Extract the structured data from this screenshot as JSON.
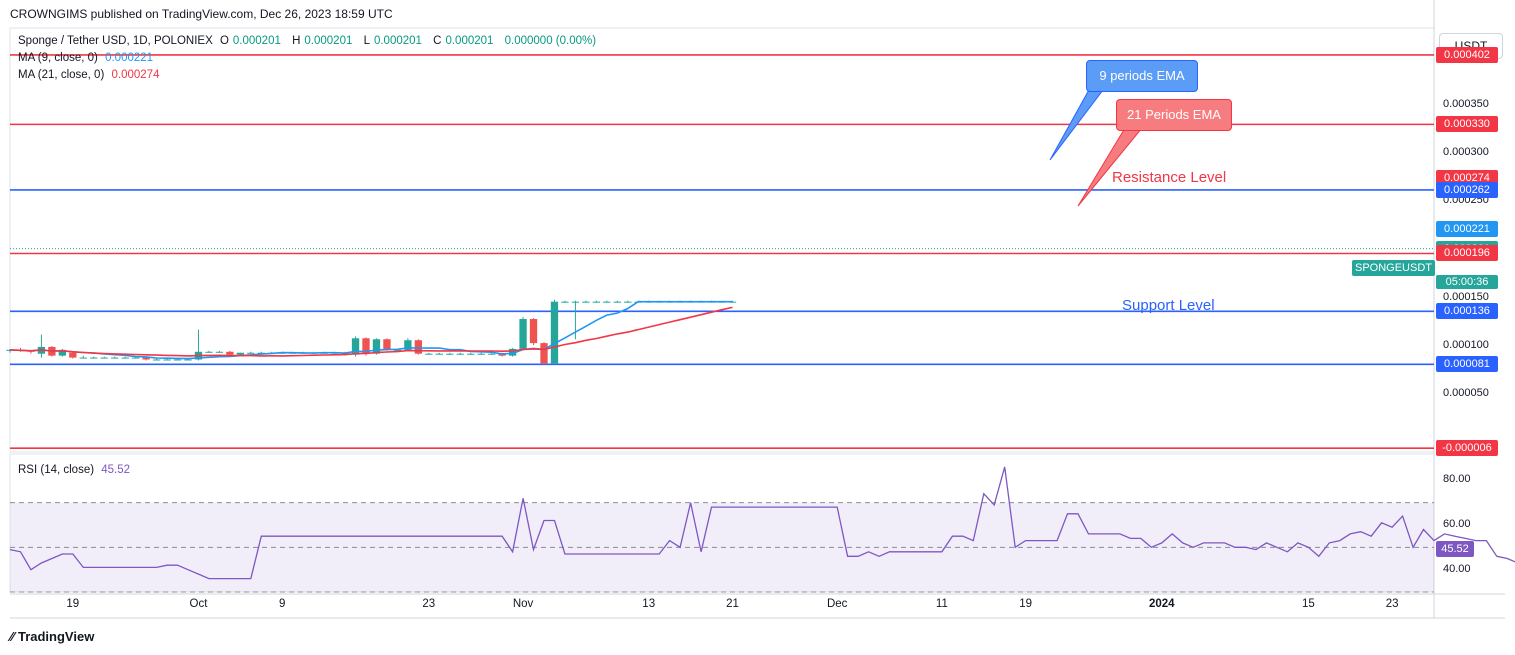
{
  "header": {
    "publisher_line": "CROWNGIMS published on TradingView.com, Dec 26, 2023 18:59 UTC"
  },
  "legend": {
    "symbol": "Sponge / Tether USD, 1D, POLONIEX",
    "o_label": "O",
    "o_value": "0.000201",
    "h_label": "H",
    "h_value": "0.000201",
    "l_label": "L",
    "l_value": "0.000201",
    "c_label": "C",
    "c_value": "0.000201",
    "change": "0.000000 (0.00%)",
    "ma9_label": "MA (9, close, 0)",
    "ma9_value": "0.000221",
    "ma21_label": "MA (21, close, 0)",
    "ma21_value": "0.000274",
    "rsi_label": "RSI (14, close)",
    "rsi_value": "45.52"
  },
  "currency_button": "USDT",
  "annotations": {
    "ema9": "9 periods EMA",
    "ema21": "21 Periods EMA",
    "resistance": "Resistance Level",
    "support": "Support Level"
  },
  "symbol_tag": "SPONGEUSDT",
  "countdown": "05:00:36",
  "price_axis_ticks": [
    "0.000350",
    "0.000300",
    "0.000250",
    "0.000150",
    "0.000100",
    "0.000050"
  ],
  "price_pills": [
    {
      "label": "0.000402",
      "color": "#f23645"
    },
    {
      "label": "0.000330",
      "color": "#f23645"
    },
    {
      "label": "0.000274",
      "color": "#f23645"
    },
    {
      "label": "0.000262",
      "color": "#2962ff"
    },
    {
      "label": "0.000221",
      "color": "#2196f3"
    },
    {
      "label": "0.000201",
      "color": "#26a69a"
    },
    {
      "label": "0.000196",
      "color": "#f23645"
    },
    {
      "label": "0.000136",
      "color": "#2962ff"
    },
    {
      "label": "0.000081",
      "color": "#2962ff"
    },
    {
      "label": "-0.000006",
      "color": "#f23645"
    }
  ],
  "rsi_axis_ticks": [
    "80.00",
    "60.00",
    "40.00"
  ],
  "rsi_pill": "45.52",
  "x_axis_ticks": [
    "19",
    "Oct",
    "9",
    "23",
    "Nov",
    "13",
    "21",
    "Dec",
    "11",
    "19",
    "2024",
    "15",
    "23"
  ],
  "footer_logo": "TradingView",
  "colors": {
    "up": "#26a69a",
    "down": "#ef5350",
    "ma9": "#2196f3",
    "ma21": "#f23645",
    "rsi": "#7e57c2",
    "resistance_line": "#f23645",
    "support_line": "#2962ff"
  },
  "chart_data": [
    {
      "type": "candlestick",
      "title": "Sponge / Tether USD, 1D, POLONIEX",
      "x_range": [
        "2023-09-13",
        "2024-01-27"
      ],
      "ylim": [
        -1e-05,
        0.00043
      ],
      "horizontal_levels": [
        {
          "price": 0.000402,
          "kind": "resistance"
        },
        {
          "price": 0.00033,
          "kind": "resistance"
        },
        {
          "price": 0.000262,
          "kind": "support"
        },
        {
          "price": 0.000196,
          "kind": "resistance"
        },
        {
          "price": 0.000136,
          "kind": "support"
        },
        {
          "price": 8.1e-05,
          "kind": "support"
        },
        {
          "price": -6e-06,
          "kind": "resistance"
        }
      ],
      "candles": [
        {
          "date": "2023-09-13",
          "o": 9.5e-05,
          "h": 9.7e-05,
          "l": 9.3e-05,
          "c": 9.6e-05
        },
        {
          "date": "2023-09-14",
          "o": 9.6e-05,
          "h": 9.8e-05,
          "l": 9.4e-05,
          "c": 9.5e-05
        },
        {
          "date": "2023-09-15",
          "o": 9.5e-05,
          "h": 9.6e-05,
          "l": 9.2e-05,
          "c": 9.4e-05
        },
        {
          "date": "2023-09-16",
          "o": 9.2e-05,
          "h": 0.000112,
          "l": 8.8e-05,
          "c": 9.9e-05
        },
        {
          "date": "2023-09-17",
          "o": 9.9e-05,
          "h": 0.0001,
          "l": 8.9e-05,
          "c": 9e-05
        },
        {
          "date": "2023-09-18",
          "o": 9e-05,
          "h": 9.7e-05,
          "l": 8.9e-05,
          "c": 9.6e-05
        },
        {
          "date": "2023-09-19",
          "o": 9.3e-05,
          "h": 9.4e-05,
          "l": 8.7e-05,
          "c": 8.8e-05
        },
        {
          "date": "2023-09-20",
          "o": 8.8e-05,
          "h": 9e-05,
          "l": 8.7e-05,
          "c": 8.8e-05
        },
        {
          "date": "2023-09-21",
          "o": 8.8e-05,
          "h": 8.9e-05,
          "l": 8.7e-05,
          "c": 8.8e-05
        },
        {
          "date": "2023-09-22",
          "o": 8.8e-05,
          "h": 8.9e-05,
          "l": 8.7e-05,
          "c": 8.8e-05
        },
        {
          "date": "2023-09-23",
          "o": 8.8e-05,
          "h": 8.9e-05,
          "l": 8.7e-05,
          "c": 8.8e-05
        },
        {
          "date": "2023-09-24",
          "o": 8.8e-05,
          "h": 8.9e-05,
          "l": 8.7e-05,
          "c": 8.8e-05
        },
        {
          "date": "2023-09-25",
          "o": 8.8e-05,
          "h": 8.9e-05,
          "l": 8.7e-05,
          "c": 8.8e-05
        },
        {
          "date": "2023-09-26",
          "o": 8.8e-05,
          "h": 8.9e-05,
          "l": 8.5e-05,
          "c": 8.6e-05
        },
        {
          "date": "2023-09-27",
          "o": 8.6e-05,
          "h": 8.7e-05,
          "l": 8.5e-05,
          "c": 8.6e-05
        },
        {
          "date": "2023-09-28",
          "o": 8.6e-05,
          "h": 8.7e-05,
          "l": 8.5e-05,
          "c": 8.6e-05
        },
        {
          "date": "2023-09-29",
          "o": 8.6e-05,
          "h": 8.7e-05,
          "l": 8.5e-05,
          "c": 8.6e-05
        },
        {
          "date": "2023-09-30",
          "o": 8.6e-05,
          "h": 8.7e-05,
          "l": 8.5e-05,
          "c": 8.6e-05
        },
        {
          "date": "2023-10-01",
          "o": 8.6e-05,
          "h": 0.000117,
          "l": 8.5e-05,
          "c": 9.4e-05
        },
        {
          "date": "2023-10-02",
          "o": 9.4e-05,
          "h": 9.5e-05,
          "l": 9.3e-05,
          "c": 9.4e-05
        },
        {
          "date": "2023-10-03",
          "o": 9.4e-05,
          "h": 9.5e-05,
          "l": 9.3e-05,
          "c": 9.4e-05
        },
        {
          "date": "2023-10-04",
          "o": 9.4e-05,
          "h": 9.5e-05,
          "l": 9e-05,
          "c": 9.1e-05
        },
        {
          "date": "2023-10-05",
          "o": 9.1e-05,
          "h": 9.3e-05,
          "l": 9e-05,
          "c": 9.3e-05
        },
        {
          "date": "2023-10-06",
          "o": 9.3e-05,
          "h": 9.4e-05,
          "l": 9.2e-05,
          "c": 9.3e-05
        },
        {
          "date": "2023-10-07",
          "o": 9.3e-05,
          "h": 9.4e-05,
          "l": 9.2e-05,
          "c": 9.3e-05
        },
        {
          "date": "2023-10-08",
          "o": 9.3e-05,
          "h": 9.4e-05,
          "l": 9.2e-05,
          "c": 9.3e-05
        },
        {
          "date": "2023-10-09",
          "o": 9.3e-05,
          "h": 9.4e-05,
          "l": 9.2e-05,
          "c": 9.3e-05
        },
        {
          "date": "2023-10-10",
          "o": 9.3e-05,
          "h": 9.4e-05,
          "l": 9.2e-05,
          "c": 9.3e-05
        },
        {
          "date": "2023-10-11",
          "o": 9.3e-05,
          "h": 9.4e-05,
          "l": 9.2e-05,
          "c": 9.3e-05
        },
        {
          "date": "2023-10-12",
          "o": 9.3e-05,
          "h": 9.4e-05,
          "l": 9.2e-05,
          "c": 9.3e-05
        },
        {
          "date": "2023-10-13",
          "o": 9.3e-05,
          "h": 9.4e-05,
          "l": 9.2e-05,
          "c": 9.3e-05
        },
        {
          "date": "2023-10-14",
          "o": 9.3e-05,
          "h": 9.4e-05,
          "l": 9.2e-05,
          "c": 9.3e-05
        },
        {
          "date": "2023-10-15",
          "o": 9.3e-05,
          "h": 9.4e-05,
          "l": 9e-05,
          "c": 9.1e-05
        },
        {
          "date": "2023-10-16",
          "o": 9.1e-05,
          "h": 0.00011,
          "l": 8.9e-05,
          "c": 0.000108
        },
        {
          "date": "2023-10-17",
          "o": 0.000108,
          "h": 0.000109,
          "l": 9e-05,
          "c": 9.2e-05
        },
        {
          "date": "2023-10-18",
          "o": 9.2e-05,
          "h": 0.000108,
          "l": 9.1e-05,
          "c": 0.000107
        },
        {
          "date": "2023-10-19",
          "o": 0.000107,
          "h": 0.000108,
          "l": 9.5e-05,
          "c": 9.6e-05
        },
        {
          "date": "2023-10-20",
          "o": 9.6e-05,
          "h": 9.7e-05,
          "l": 9.5e-05,
          "c": 9.6e-05
        },
        {
          "date": "2023-10-21",
          "o": 9.6e-05,
          "h": 0.000108,
          "l": 9.5e-05,
          "c": 0.000106
        },
        {
          "date": "2023-10-22",
          "o": 0.000106,
          "h": 0.000107,
          "l": 9.1e-05,
          "c": 9.2e-05
        },
        {
          "date": "2023-10-23",
          "o": 9.2e-05,
          "h": 9.3e-05,
          "l": 9.1e-05,
          "c": 9.2e-05
        },
        {
          "date": "2023-10-24",
          "o": 9.2e-05,
          "h": 9.3e-05,
          "l": 9.1e-05,
          "c": 9.2e-05
        },
        {
          "date": "2023-10-25",
          "o": 9.2e-05,
          "h": 9.3e-05,
          "l": 9.1e-05,
          "c": 9.2e-05
        },
        {
          "date": "2023-10-26",
          "o": 9.2e-05,
          "h": 9.3e-05,
          "l": 9.1e-05,
          "c": 9.2e-05
        },
        {
          "date": "2023-10-27",
          "o": 9.2e-05,
          "h": 9.3e-05,
          "l": 9.1e-05,
          "c": 9.2e-05
        },
        {
          "date": "2023-10-28",
          "o": 9.2e-05,
          "h": 9.3e-05,
          "l": 9.1e-05,
          "c": 9.2e-05
        },
        {
          "date": "2023-10-29",
          "o": 9.2e-05,
          "h": 9.3e-05,
          "l": 9.1e-05,
          "c": 9.2e-05
        },
        {
          "date": "2023-10-30",
          "o": 9.2e-05,
          "h": 9.3e-05,
          "l": 8.9e-05,
          "c": 9e-05
        },
        {
          "date": "2023-10-31",
          "o": 9e-05,
          "h": 9.8e-05,
          "l": 8.9e-05,
          "c": 9.7e-05
        },
        {
          "date": "2023-11-01",
          "o": 9.7e-05,
          "h": 0.00013,
          "l": 9.6e-05,
          "c": 0.000128
        },
        {
          "date": "2023-11-02",
          "o": 0.000128,
          "h": 0.000129,
          "l": 0.000101,
          "c": 0.000103
        },
        {
          "date": "2023-11-03",
          "o": 0.000103,
          "h": 0.000104,
          "l": 8e-05,
          "c": 8.2e-05
        },
        {
          "date": "2023-11-04",
          "o": 8.2e-05,
          "h": 0.000148,
          "l": 8.1e-05,
          "c": 0.000146
        },
        {
          "date": "2023-11-05",
          "o": 0.000146,
          "h": 0.000147,
          "l": 0.000145,
          "c": 0.000146
        },
        {
          "date": "2023-11-06",
          "o": 0.000146,
          "h": 0.000147,
          "l": 0.000107,
          "c": 0.000146
        },
        {
          "date": "2023-11-07",
          "o": 0.000146,
          "h": 0.000147,
          "l": 0.000145,
          "c": 0.000146
        },
        {
          "date": "2023-11-08",
          "o": 0.000146,
          "h": 0.000147,
          "l": 0.000145,
          "c": 0.000146
        },
        {
          "date": "2023-11-09",
          "o": 0.000146,
          "h": 0.000147,
          "l": 0.000145,
          "c": 0.000146
        },
        {
          "date": "2023-11-10",
          "o": 0.000146,
          "h": 0.000147,
          "l": 0.000145,
          "c": 0.000146
        },
        {
          "date": "2023-11-11",
          "o": 0.000146,
          "h": 0.000147,
          "l": 0.000145,
          "c": 0.000146
        },
        {
          "date": "2023-11-12",
          "o": 0.000146,
          "h": 0.000147,
          "l": 0.000145,
          "c": 0.000146
        },
        {
          "date": "2023-11-13",
          "o": 0.000146,
          "h": 0.000147,
          "l": 0.000145,
          "c": 0.000146
        },
        {
          "date": "2023-11-14",
          "o": 0.000146,
          "h": 0.000147,
          "l": 0.000145,
          "c": 0.000146
        },
        {
          "date": "2023-11-15",
          "o": 0.000146,
          "h": 0.000147,
          "l": 0.000145,
          "c": 0.000146
        },
        {
          "date": "2023-11-16",
          "o": 0.000146,
          "h": 0.000147,
          "l": 0.000145,
          "c": 0.000146
        },
        {
          "date": "2023-11-17",
          "o": 0.000146,
          "h": 0.000147,
          "l": 0.000145,
          "c": 0.000146
        },
        {
          "date": "2023-11-18",
          "o": 0.000146,
          "h": 0.000147,
          "l": 0.000145,
          "c": 0.000146
        },
        {
          "date": "2023-11-19",
          "o": 0.000146,
          "h": 0.000147,
          "l": 0.000145,
          "c": 0.000146
        },
        {
          "date": "2023-11-20",
          "o": 0.000146,
          "h": 0.000147,
          "l": 0.000145,
          "c": 0.000146
        },
        {
          "date": "2023-11-21",
          "o": 0.000146,
          "h": 0.000147,
          "l": 0.000145,
          "c": 0.000146
        }
      ]
    },
    {
      "type": "line",
      "title": "RSI (14, close)",
      "ylim": [
        30,
        90
      ],
      "reference_lines": [
        70,
        50,
        30
      ],
      "x_range": [
        "2023-09-13",
        "2024-01-27"
      ],
      "series": [
        {
          "name": "RSI (14, close)",
          "values": [
            49,
            48,
            40,
            43,
            45,
            47,
            47,
            41,
            41,
            41,
            41,
            41,
            41,
            41,
            41,
            42,
            42,
            40,
            38,
            36,
            36,
            36,
            36,
            36,
            55,
            55,
            55,
            55,
            55,
            55,
            55,
            55,
            55,
            55,
            55,
            55,
            55,
            55,
            55,
            55,
            55,
            55,
            55,
            55,
            55,
            55,
            55,
            55,
            48,
            72,
            49,
            62,
            62,
            47,
            47,
            47,
            47,
            47,
            47,
            47,
            47,
            47,
            47,
            53,
            50,
            70,
            48,
            68,
            68,
            68,
            68,
            68,
            68,
            68,
            68,
            68,
            68,
            68,
            68,
            68,
            46,
            46,
            48,
            46,
            48,
            48,
            48,
            48,
            48,
            48,
            55,
            55,
            53,
            74,
            69,
            86,
            50,
            53,
            53,
            53,
            53,
            65,
            65,
            56,
            56,
            56,
            56,
            54,
            54,
            50,
            52,
            56,
            52,
            50,
            52,
            52,
            52,
            50,
            50,
            49,
            52,
            50,
            48,
            52,
            50,
            46,
            52,
            53,
            56,
            57,
            55,
            61,
            59,
            64,
            50,
            58,
            53,
            56,
            55,
            54,
            53,
            53,
            46,
            45,
            43,
            45,
            47,
            46,
            46
          ]
        }
      ]
    }
  ]
}
